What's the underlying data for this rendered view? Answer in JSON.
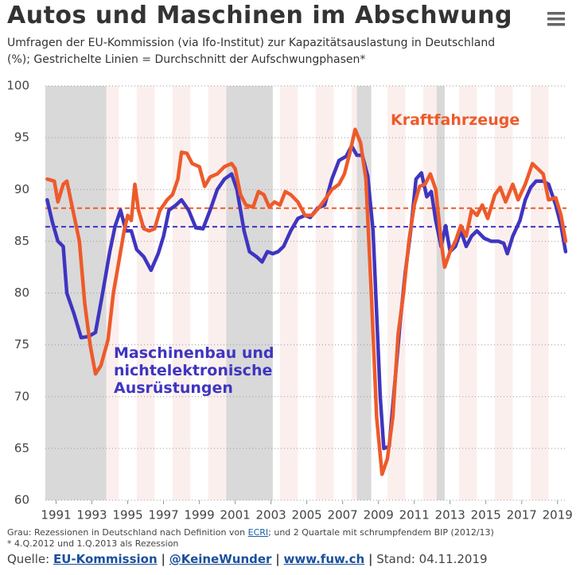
{
  "chart_data": {
    "type": "line",
    "title": "Autos und Maschinen im Abschwung",
    "subtitle": "Umfragen der EU-Kommission (via Ifo-Institut) zur Kapazitätsauslastung in Deutschland (%); Gestrichelte Linien = Durchschnitt der Aufschwungphasen*",
    "xlim": [
      1990.4,
      2019.5
    ],
    "xticks": [
      1991,
      1993,
      1995,
      1997,
      1999,
      2001,
      2003,
      2005,
      2007,
      2009,
      2011,
      2013,
      2015,
      2017,
      2019
    ],
    "ylim": [
      60,
      100
    ],
    "yticks": [
      60,
      65,
      70,
      75,
      80,
      85,
      90,
      95,
      100
    ],
    "grid": true,
    "shaded_periods": [
      [
        1990.4,
        1993.8
      ],
      [
        2000.5,
        2003.1
      ],
      [
        2007.8,
        2008.6
      ],
      [
        2012.25,
        2012.7
      ]
    ],
    "reference_lines": [
      {
        "value": 88.2,
        "color": "#ee5a2a"
      },
      {
        "value": 86.4,
        "color": "#3f35c0"
      }
    ],
    "series": [
      {
        "name": "Kraftfahrzeuge",
        "color": "#ee5a2a",
        "x": [
          1990.5,
          1990.9,
          1991.1,
          1991.4,
          1991.6,
          1992.0,
          1992.3,
          1992.6,
          1992.9,
          1993.2,
          1993.5,
          1993.9,
          1994.2,
          1994.5,
          1994.8,
          1995.0,
          1995.2,
          1995.4,
          1995.6,
          1995.9,
          1996.2,
          1996.5,
          1996.8,
          1997.2,
          1997.5,
          1997.8,
          1998.0,
          1998.3,
          1998.6,
          1999.0,
          1999.3,
          1999.6,
          2000.0,
          2000.4,
          2000.8,
          2001.0,
          2001.3,
          2001.6,
          2002.0,
          2002.3,
          2002.6,
          2002.9,
          2003.2,
          2003.5,
          2003.8,
          2004.1,
          2004.5,
          2004.9,
          2005.3,
          2005.7,
          2006.0,
          2006.4,
          2006.8,
          2007.1,
          2007.4,
          2007.7,
          2008.0,
          2008.3,
          2008.6,
          2008.9,
          2009.2,
          2009.5,
          2009.8,
          2010.1,
          2010.4,
          2010.7,
          2011.0,
          2011.3,
          2011.6,
          2011.9,
          2012.2,
          2012.5,
          2012.7,
          2013.0,
          2013.3,
          2013.6,
          2013.9,
          2014.2,
          2014.5,
          2014.8,
          2015.1,
          2015.5,
          2015.8,
          2016.1,
          2016.5,
          2016.8,
          2017.2,
          2017.6,
          2017.9,
          2018.2,
          2018.5,
          2018.9,
          2019.2,
          2019.45
        ],
        "values": [
          91.0,
          90.8,
          88.8,
          90.5,
          90.8,
          87.5,
          85,
          79,
          75,
          72.2,
          73,
          75.5,
          80,
          83,
          86,
          87.5,
          87,
          90.5,
          88,
          86.2,
          86,
          86.2,
          88,
          89,
          89.5,
          91,
          93.6,
          93.5,
          92.5,
          92.2,
          90.3,
          91.2,
          91.5,
          92.2,
          92.5,
          92.0,
          89.5,
          88.5,
          88.3,
          89.8,
          89.5,
          88.3,
          88.8,
          88.5,
          89.8,
          89.5,
          88.8,
          87.5,
          87.5,
          88.3,
          89,
          90,
          90.5,
          91.5,
          93.5,
          95.8,
          94.5,
          91,
          80,
          68,
          62.5,
          64,
          68,
          76,
          80,
          85,
          88.5,
          90.3,
          90.5,
          91.5,
          90,
          85,
          82.5,
          84,
          85,
          86.5,
          85.5,
          88,
          87.5,
          88.5,
          87.2,
          89.5,
          90.2,
          88.8,
          90.5,
          89,
          90.5,
          92.5,
          92,
          91.5,
          89,
          89.2,
          87.5,
          85
        ]
      },
      {
        "name": "Maschinenbau und nichtelektronische Ausrüstungen",
        "color": "#3f35c0",
        "x": [
          1990.5,
          1990.8,
          1991.1,
          1991.4,
          1991.6,
          1992.0,
          1992.4,
          1992.8,
          1993.2,
          1993.6,
          1994.0,
          1994.3,
          1994.6,
          1994.9,
          1995.2,
          1995.5,
          1995.9,
          1996.3,
          1996.7,
          1997.0,
          1997.3,
          1997.7,
          1998.0,
          1998.4,
          1998.8,
          1999.2,
          1999.6,
          2000.0,
          2000.4,
          2000.8,
          2001.1,
          2001.5,
          2001.8,
          2002.2,
          2002.5,
          2002.8,
          2003.1,
          2003.4,
          2003.7,
          2004.1,
          2004.5,
          2004.9,
          2005.2,
          2005.6,
          2006.0,
          2006.4,
          2006.8,
          2007.2,
          2007.5,
          2007.8,
          2008.1,
          2008.4,
          2008.7,
          2008.9,
          2009.1,
          2009.3,
          2009.6,
          2009.9,
          2010.2,
          2010.5,
          2010.8,
          2011.1,
          2011.4,
          2011.7,
          2011.95,
          2012.2,
          2012.5,
          2012.75,
          2013.0,
          2013.3,
          2013.6,
          2013.9,
          2014.2,
          2014.5,
          2014.9,
          2015.3,
          2015.7,
          2016.0,
          2016.2,
          2016.5,
          2016.9,
          2017.2,
          2017.5,
          2017.8,
          2018.2,
          2018.5,
          2018.9,
          2019.2,
          2019.45
        ],
        "values": [
          89,
          86.8,
          85,
          84.5,
          80,
          78,
          75.7,
          75.8,
          76.2,
          80,
          84,
          86.5,
          88,
          86,
          86,
          84.2,
          83.5,
          82.2,
          83.8,
          85.5,
          88,
          88.5,
          89,
          88,
          86.3,
          86.2,
          88,
          90,
          91,
          91.5,
          90,
          86,
          84,
          83.5,
          83,
          84,
          83.8,
          84,
          84.5,
          86,
          87.2,
          87.5,
          87.3,
          88.2,
          88.5,
          91,
          92.8,
          93.2,
          94.2,
          93.3,
          93.3,
          91.3,
          86,
          78,
          70,
          65,
          65.2,
          71,
          77,
          82,
          86,
          91,
          91.6,
          89.3,
          89.8,
          87,
          84.5,
          86.5,
          84,
          84.5,
          86,
          84.5,
          85.5,
          86,
          85.3,
          85,
          85,
          84.8,
          83.8,
          85.5,
          87,
          89,
          90.2,
          90.8,
          90.8,
          90.5,
          88.5,
          86.5,
          84
        ]
      }
    ],
    "notes": {
      "recession_before": "Grau: Rezessionen in Deutschland nach Definition von",
      "recession_link": "ECRI",
      "recession_after": "; und 2 Quartale mit schrumpfendem BIP (2012/13)",
      "footnote": "* 4.Q.2012 und 1.Q.2013 als Rezession"
    },
    "source": {
      "label": "Quelle:",
      "separator": "|",
      "links": [
        "EU-Kommission",
        "@KeineWunder",
        "www.fuw.ch"
      ],
      "date": "Stand: 04.11.2019"
    }
  }
}
